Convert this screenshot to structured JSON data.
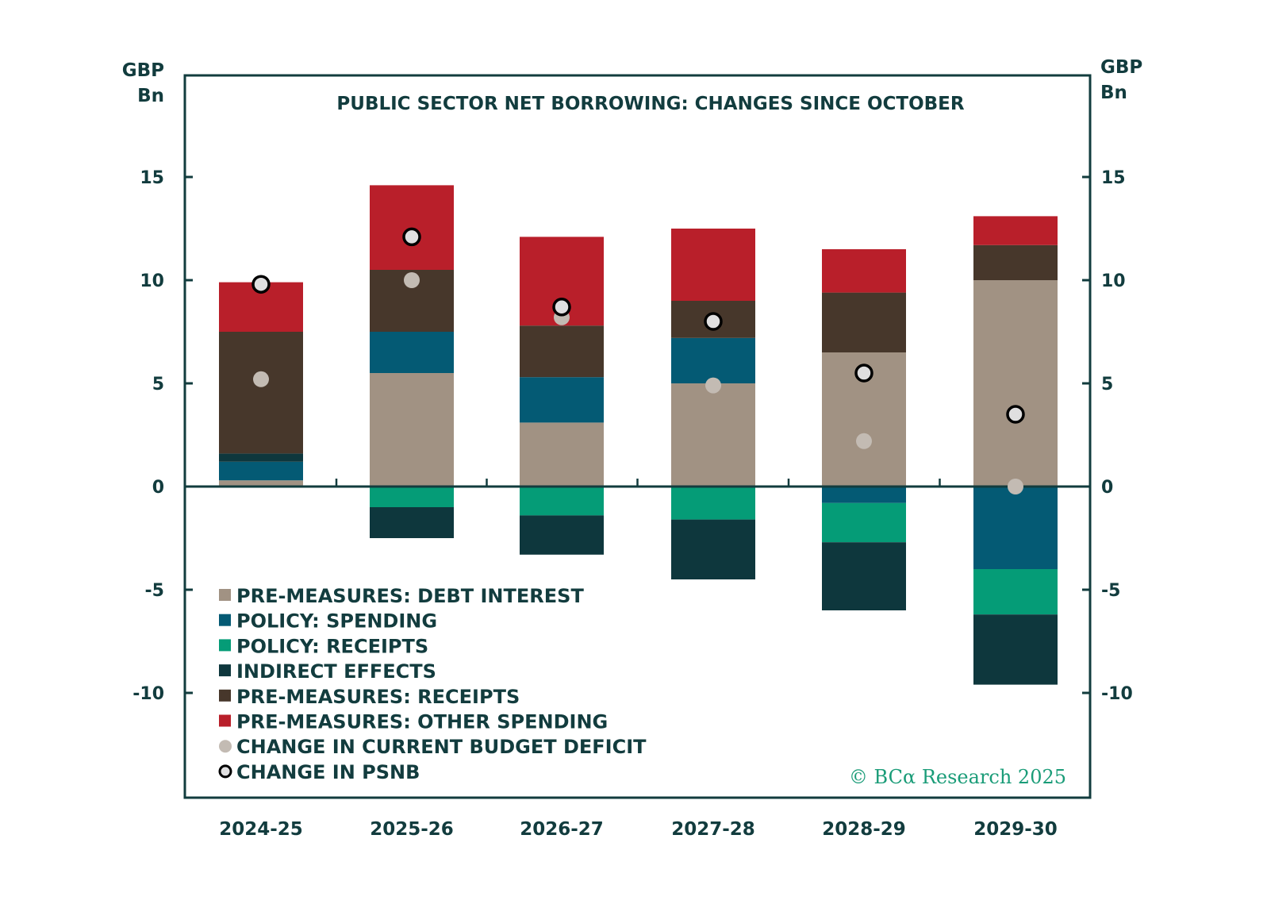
{
  "chart_data": {
    "type": "bar",
    "stacked": true,
    "title": "PUBLIC SECTOR NET BORROWING: CHANGES SINCE OCTOBER",
    "y_unit_label_left": [
      "GBP",
      "Bn"
    ],
    "y_unit_label_right": [
      "GBP",
      "Bn"
    ],
    "ylim": [
      -14,
      19
    ],
    "yticks": [
      -10,
      -5,
      0,
      5,
      10,
      15
    ],
    "ytick_labels": [
      "-10",
      "-5",
      "0",
      "5",
      "10",
      "15"
    ],
    "categories": [
      "2024-25",
      "2025-26",
      "2026-27",
      "2027-28",
      "2028-29",
      "2029-30"
    ],
    "series": [
      {
        "name": "PRE-MEASURES: DEBT INTEREST",
        "color": "#a19283",
        "values": [
          0.3,
          5.5,
          3.1,
          5.0,
          6.5,
          10.0
        ]
      },
      {
        "name": "POLICY: SPENDING",
        "color": "#045a74",
        "values": [
          0.9,
          2.0,
          2.2,
          2.2,
          -0.8,
          -4.0
        ]
      },
      {
        "name": "POLICY: RECEIPTS",
        "color": "#059c77",
        "values": [
          0.0,
          -1.0,
          -1.4,
          -1.6,
          -1.9,
          -2.2
        ]
      },
      {
        "name": "INDIRECT EFFECTS",
        "color": "#0e373d",
        "values": [
          0.4,
          -1.5,
          -1.9,
          -2.9,
          -3.3,
          -3.4
        ]
      },
      {
        "name": "PRE-MEASURES: RECEIPTS",
        "color": "#47372b",
        "values": [
          5.9,
          3.0,
          2.5,
          1.8,
          2.9,
          1.7
        ]
      },
      {
        "name": "PRE-MEASURES: OTHER SPENDING",
        "color": "#b91f2a",
        "values": [
          2.4,
          4.1,
          4.3,
          3.5,
          2.1,
          1.4
        ]
      }
    ],
    "stack_order_positive": [
      "PRE-MEASURES: DEBT INTEREST",
      "POLICY: SPENDING",
      "INDIRECT EFFECTS",
      "PRE-MEASURES: RECEIPTS",
      "PRE-MEASURES: OTHER SPENDING"
    ],
    "stack_order_negative": [
      "POLICY: SPENDING",
      "POLICY: RECEIPTS",
      "INDIRECT EFFECTS"
    ],
    "points": [
      {
        "name": "CHANGE IN CURRENT BUDGET DEFICIT",
        "marker": "filled-circle",
        "color": "#c3bbb3",
        "values": [
          5.2,
          10.0,
          8.2,
          4.9,
          2.2,
          0.0
        ]
      },
      {
        "name": "CHANGE IN PSNB",
        "marker": "outlined-circle",
        "color": "#e0dfe0",
        "edge_color": "#000000",
        "values": [
          9.8,
          12.1,
          8.7,
          8.0,
          5.5,
          3.5
        ]
      }
    ],
    "legend": {
      "placement": "bottom-left",
      "entries": [
        {
          "label": "PRE-MEASURES: DEBT INTEREST",
          "marker": "square",
          "color": "#a19283"
        },
        {
          "label": "POLICY: SPENDING",
          "marker": "square",
          "color": "#045a74"
        },
        {
          "label": "POLICY: RECEIPTS",
          "marker": "square",
          "color": "#059c77"
        },
        {
          "label": "INDIRECT EFFECTS",
          "marker": "square",
          "color": "#0e373d"
        },
        {
          "label": "PRE-MEASURES: RECEIPTS",
          "marker": "square",
          "color": "#47372b"
        },
        {
          "label": "PRE-MEASURES: OTHER SPENDING",
          "marker": "square",
          "color": "#b91f2a"
        },
        {
          "label": "CHANGE IN CURRENT BUDGET DEFICIT",
          "marker": "filled-circle",
          "color": "#c3bbb3"
        },
        {
          "label": "CHANGE IN PSNB",
          "marker": "outlined-circle",
          "color": "#e0dfe0"
        }
      ]
    },
    "grid": false,
    "xlabel": "",
    "ylabel": "GBP Bn"
  },
  "copyright": "© BCα Research 2025",
  "colors": {
    "axis": "#123c3e",
    "text": "#123c3e",
    "copyright": "#1a9c78"
  }
}
